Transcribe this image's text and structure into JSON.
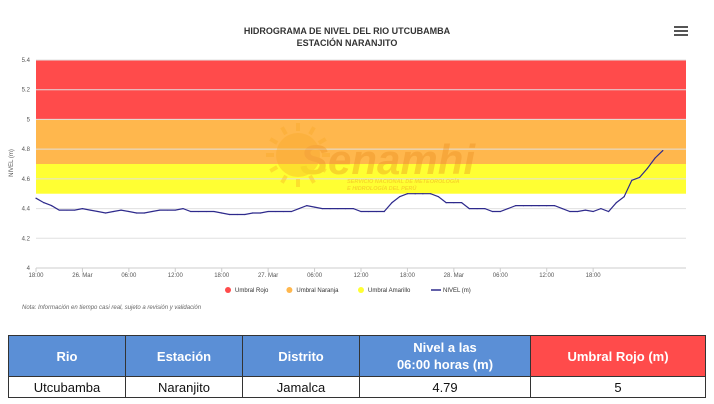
{
  "chart_data": {
    "type": "line",
    "title": "HIDROGRAMA DE NIVEL DEL RIO UTCUBAMBA",
    "subtitle": "ESTACIÓN NARANJITO",
    "ylabel": "NIVEL (m)",
    "xlabel": "",
    "ylim": [
      4,
      5.4
    ],
    "y_ticks": [
      "4",
      "4.2",
      "4.4",
      "4.6",
      "4.8",
      "5",
      "5.2",
      "5.4"
    ],
    "x_ticks": [
      "18:00",
      "26. Mar",
      "06:00",
      "12:00",
      "18:00",
      "27. Mar",
      "06:00",
      "12:00",
      "18:00",
      "28. Mar",
      "06:00",
      "12:00",
      "18:00"
    ],
    "x_range_hours": [
      0,
      84
    ],
    "bands": [
      {
        "name": "Umbral Amarillo",
        "from": 4.5,
        "to": 4.7,
        "color": "#ffff33"
      },
      {
        "name": "Umbral Naranja",
        "from": 4.7,
        "to": 5.0,
        "color": "#ffb74d"
      },
      {
        "name": "Umbral Rojo",
        "from": 5.0,
        "to": 5.4,
        "color": "#ff4b4b"
      }
    ],
    "series": [
      {
        "name": "NIVEL (m)",
        "color": "#2e2a8c",
        "x": [
          0,
          1,
          2,
          3,
          4,
          5,
          6,
          7,
          8,
          9,
          10,
          11,
          12,
          13,
          14,
          15,
          16,
          17,
          18,
          19,
          20,
          21,
          22,
          23,
          24,
          25,
          26,
          27,
          28,
          29,
          30,
          31,
          32,
          33,
          34,
          35,
          36,
          37,
          38,
          39,
          40,
          41,
          42,
          43,
          44,
          45,
          46,
          47,
          48,
          49,
          50,
          51,
          52,
          53,
          54,
          55,
          56,
          57,
          58,
          59,
          60,
          61,
          62,
          63,
          64,
          65,
          66,
          67,
          68,
          69,
          70,
          71,
          72,
          73,
          74,
          75,
          76,
          77,
          78,
          79,
          80,
          81
        ],
        "y": [
          4.47,
          4.44,
          4.42,
          4.39,
          4.39,
          4.39,
          4.4,
          4.39,
          4.38,
          4.37,
          4.38,
          4.39,
          4.38,
          4.37,
          4.37,
          4.38,
          4.39,
          4.39,
          4.39,
          4.4,
          4.38,
          4.38,
          4.38,
          4.38,
          4.37,
          4.36,
          4.36,
          4.36,
          4.37,
          4.37,
          4.38,
          4.38,
          4.38,
          4.38,
          4.4,
          4.42,
          4.41,
          4.4,
          4.4,
          4.4,
          4.4,
          4.4,
          4.38,
          4.38,
          4.38,
          4.38,
          4.44,
          4.48,
          4.5,
          4.5,
          4.5,
          4.5,
          4.48,
          4.44,
          4.44,
          4.44,
          4.4,
          4.4,
          4.4,
          4.38,
          4.38,
          4.4,
          4.42,
          4.42,
          4.42,
          4.42,
          4.42,
          4.42,
          4.4,
          4.38,
          4.38,
          4.39,
          4.38,
          4.4,
          4.38,
          4.44,
          4.48,
          4.59,
          4.61,
          4.67,
          4.74,
          4.79
        ]
      }
    ],
    "legend": [
      {
        "label": "Umbral Rojo",
        "color": "#ff4b4b",
        "kind": "dot"
      },
      {
        "label": "Umbral Naranja",
        "color": "#ffb74d",
        "kind": "dot"
      },
      {
        "label": "Umbral Amarillo",
        "color": "#ffff33",
        "kind": "dot"
      },
      {
        "label": "NIVEL (m)",
        "color": "#2e2a8c",
        "kind": "line"
      }
    ],
    "legend_position": "bottom",
    "grid": true,
    "note": "Nota: Información en tiempo casi real, sujeto a revisión y validación"
  },
  "watermark": {
    "name": "Senamhi",
    "line1": "SERVICIO NACIONAL DE METEOROLOGÍA",
    "line2": "E HIDROLOGÍA DEL PERÚ"
  },
  "menu_icon": "hamburger-menu-icon",
  "table": {
    "headers": [
      "Rio",
      "Estación",
      "Distrito",
      "Nivel a las",
      "Umbral Rojo (m)"
    ],
    "header_nivel_line2": "06:00 horas (m)",
    "row": [
      "Utcubamba",
      "Naranjito",
      "Jamalca",
      "4.79",
      "5"
    ]
  }
}
